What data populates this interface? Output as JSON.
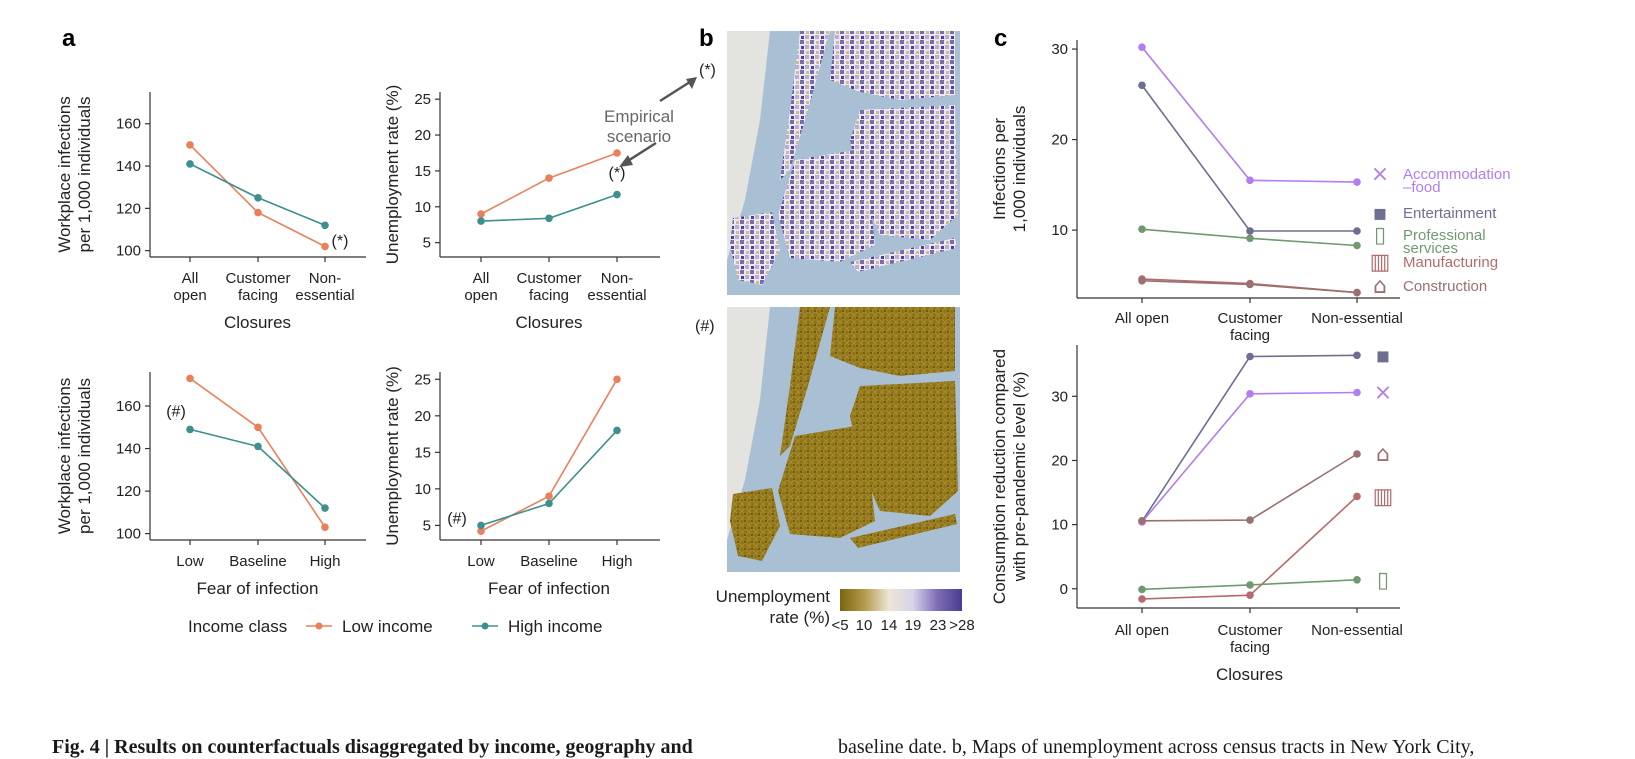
{
  "panel_labels": {
    "a": "a",
    "b": "b",
    "c": "c"
  },
  "colors": {
    "low_income": "#e8805a",
    "high_income": "#3f8f8f",
    "accommodation_food": "#b07ef0",
    "entertainment": "#6e6e90",
    "professional_services": "#6f9a6e",
    "manufacturing": "#b56b6b",
    "construction": "#9a7070",
    "axis": "#333333"
  },
  "chart_data": [
    {
      "id": "a1",
      "type": "line",
      "categories": [
        "All\nopen",
        "Customer\nfacing",
        "Non-\nessential"
      ],
      "xlabel": "Closures",
      "ylabel": "Workplace infections\nper 1,000 individuals",
      "ylim": [
        97,
        175
      ],
      "yticks": [
        100,
        120,
        140,
        160
      ],
      "series": [
        {
          "name": "Low income",
          "color_key": "low_income",
          "values": [
            150,
            118,
            102
          ]
        },
        {
          "name": "High income",
          "color_key": "high_income",
          "values": [
            141,
            125,
            112
          ]
        }
      ],
      "annotations": [
        {
          "text": "(*)",
          "x_index": 2,
          "y": 105
        }
      ]
    },
    {
      "id": "a2",
      "type": "line",
      "categories": [
        "All\nopen",
        "Customer\nfacing",
        "Non-\nessential"
      ],
      "xlabel": "Closures",
      "ylabel": "Unemployment rate (%)",
      "ylim": [
        3,
        26
      ],
      "yticks": [
        5,
        10,
        15,
        20,
        25
      ],
      "series": [
        {
          "name": "Low income",
          "color_key": "low_income",
          "values": [
            9,
            14,
            17.5
          ]
        },
        {
          "name": "High income",
          "color_key": "high_income",
          "values": [
            8,
            8.4,
            11.7
          ]
        }
      ],
      "annotations": [
        {
          "text": "(*)",
          "x_index": 2,
          "y": 14
        },
        {
          "text": "Empirical\nscenario",
          "x_index": 2,
          "y": 21
        }
      ]
    },
    {
      "id": "a3",
      "type": "line",
      "categories": [
        "Low",
        "Baseline",
        "High"
      ],
      "xlabel": "Fear of infection",
      "ylabel": "Workplace infections\nper 1,000 individuals",
      "ylim": [
        97,
        176
      ],
      "yticks": [
        100,
        120,
        140,
        160
      ],
      "series": [
        {
          "name": "Low income",
          "color_key": "low_income",
          "values": [
            173,
            150,
            103
          ]
        },
        {
          "name": "High income",
          "color_key": "high_income",
          "values": [
            149,
            141,
            112
          ]
        }
      ],
      "annotations": [
        {
          "text": "(#)",
          "x_index": 0,
          "y": 157
        }
      ]
    },
    {
      "id": "a4",
      "type": "line",
      "categories": [
        "Low",
        "Baseline",
        "High"
      ],
      "xlabel": "Fear of infection",
      "ylabel": "Unemployment rate (%)",
      "ylim": [
        3,
        26
      ],
      "yticks": [
        5,
        10,
        15,
        20,
        25
      ],
      "series": [
        {
          "name": "Low income",
          "color_key": "low_income",
          "values": [
            4.2,
            9,
            25
          ]
        },
        {
          "name": "High income",
          "color_key": "high_income",
          "values": [
            5,
            8,
            18
          ]
        }
      ],
      "annotations": [
        {
          "text": "(#)",
          "x_index": 0,
          "y": 5.5
        }
      ]
    },
    {
      "id": "c1",
      "type": "line",
      "categories": [
        "All open",
        "Customer\nfacing",
        "Non-essential"
      ],
      "xlabel": "",
      "ylabel": "Infections per\n1,000 individuals",
      "ylim": [
        2.5,
        31
      ],
      "yticks": [
        10,
        20,
        30
      ],
      "series": [
        {
          "name": "Accommodation\n–food",
          "color_key": "accommodation_food",
          "values": [
            30.2,
            15.5,
            15.3
          ]
        },
        {
          "name": "Entertainment",
          "color_key": "entertainment",
          "values": [
            26,
            9.9,
            9.9
          ]
        },
        {
          "name": "Professional\nservices",
          "color_key": "professional_services",
          "values": [
            10.1,
            9.1,
            8.3
          ]
        },
        {
          "name": "Manufacturing",
          "color_key": "manufacturing",
          "values": [
            4.6,
            4.1,
            3.1
          ]
        },
        {
          "name": "Construction",
          "color_key": "construction",
          "values": [
            4.4,
            4.0,
            3.1
          ]
        }
      ]
    },
    {
      "id": "c2",
      "type": "line",
      "categories": [
        "All open",
        "Customer\nfacing",
        "Non-essential"
      ],
      "xlabel": "Closures",
      "ylabel": "Consumption reduction compared\nwith pre-pandemic level (%)",
      "ylim": [
        -3,
        38
      ],
      "yticks": [
        0,
        10,
        20,
        30
      ],
      "series": [
        {
          "name": "Entertainment",
          "color_key": "entertainment",
          "values": [
            10.5,
            36.2,
            36.4
          ]
        },
        {
          "name": "Accommodation\n–food",
          "color_key": "accommodation_food",
          "values": [
            10.4,
            30.4,
            30.6
          ]
        },
        {
          "name": "Construction",
          "color_key": "construction",
          "values": [
            10.6,
            10.7,
            21.0
          ]
        },
        {
          "name": "Manufacturing",
          "color_key": "manufacturing",
          "values": [
            -1.6,
            -1.0,
            14.4
          ]
        },
        {
          "name": "Professional\nservices",
          "color_key": "professional_services",
          "values": [
            -0.1,
            0.6,
            1.4
          ]
        }
      ]
    }
  ],
  "legend": {
    "title": "Income class",
    "items": [
      {
        "label": "Low income",
        "color_key": "low_income"
      },
      {
        "label": "High income",
        "color_key": "high_income"
      }
    ]
  },
  "maps": {
    "top_annotation": "(*)",
    "bottom_annotation": "(#)",
    "colorbar": {
      "title": "Unemployment\nrate (%)",
      "ticks": [
        "<5",
        "10",
        "14",
        "19",
        "23",
        ">28"
      ],
      "stops": [
        "#7a6410",
        "#b49a4e",
        "#ece6d4",
        "#d8d2ea",
        "#7d6cb4",
        "#4b3c94"
      ]
    },
    "water_color": "#a9bfd3",
    "land_color": "#e3e3df"
  },
  "caption": {
    "left": "Fig. 4 | Results on counterfactuals disaggregated by income, geography and",
    "right": "baseline date. b, Maps of unemployment across census tracts in New York City,"
  }
}
